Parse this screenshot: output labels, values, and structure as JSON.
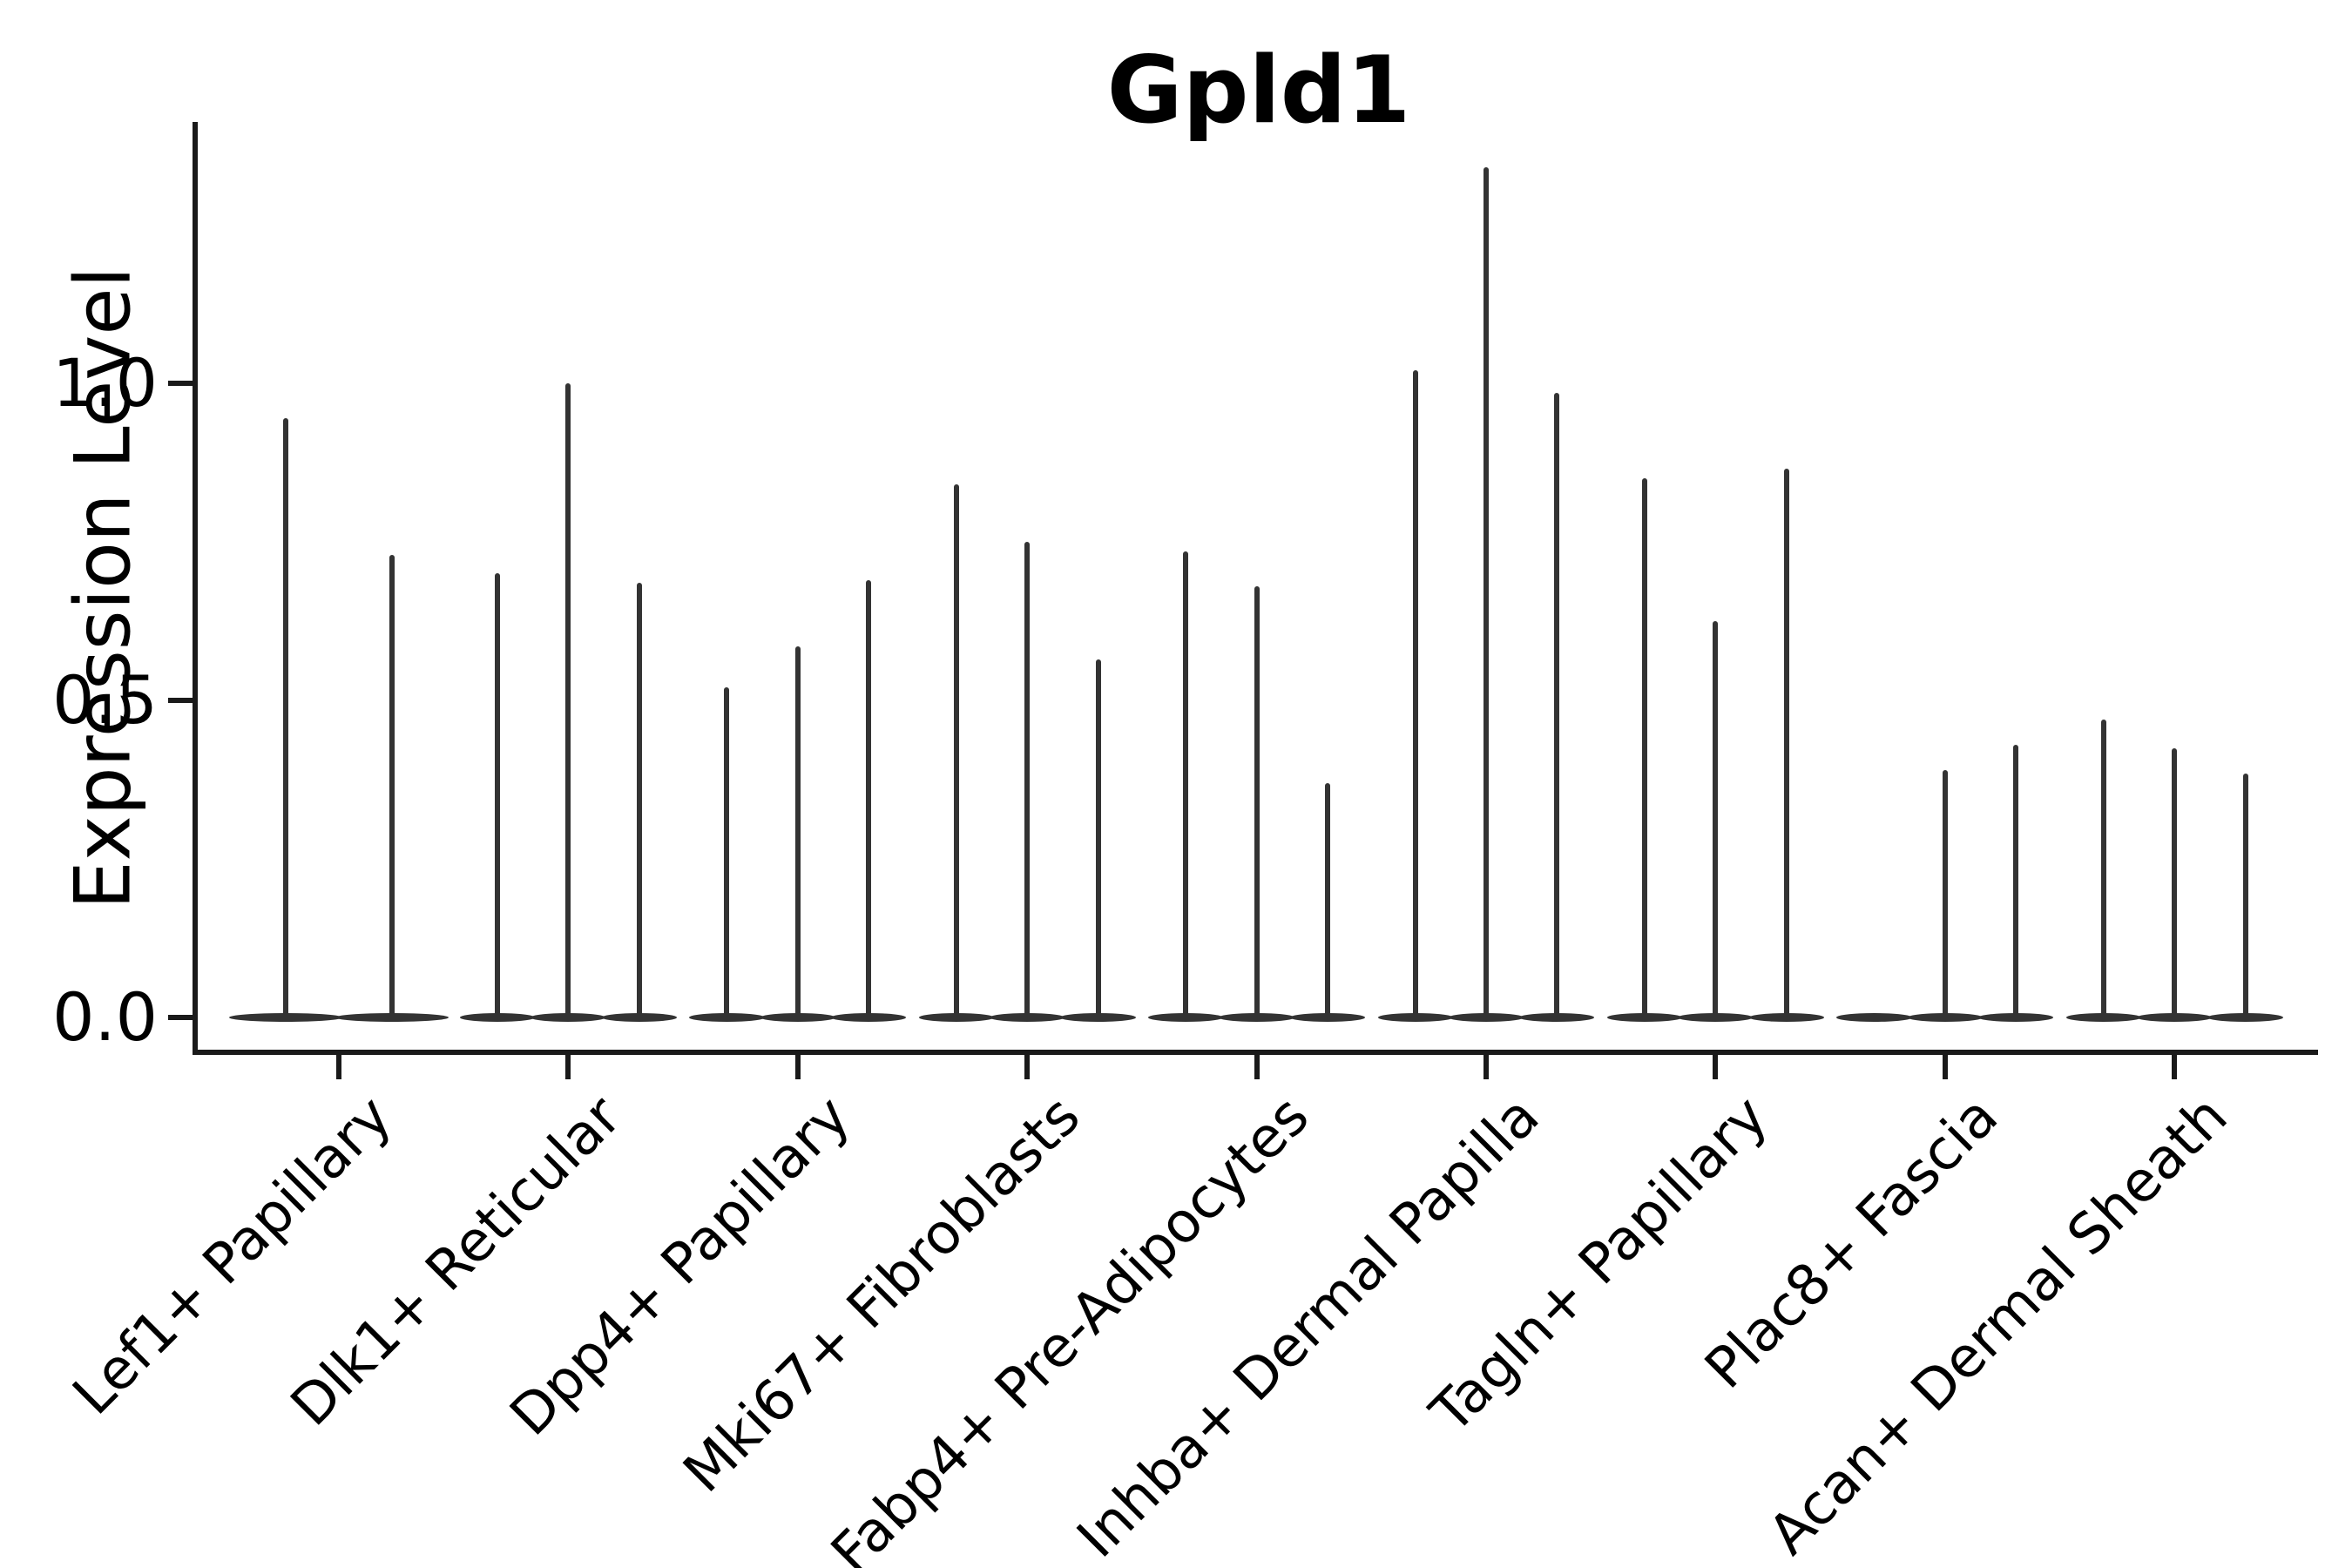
{
  "chart_data": {
    "type": "violin",
    "title": "Gpld1",
    "ylabel": "Expression Level",
    "xlabel": "",
    "grid": false,
    "legend_position": "none",
    "ylim": [
      -0.055,
      1.47
    ],
    "yticks": [
      {
        "label": "0.0",
        "value": 0.0
      },
      {
        "label": "0.5",
        "value": 0.5
      },
      {
        "label": "1.0",
        "value": 1.0
      }
    ],
    "categories": [
      "Lef1+ Papillary",
      "Dlk1+ Reticular",
      "Dpp4+ Papillary",
      "Mki67+ Fibroblasts",
      "Fabp4+ Pre-Adipocytes",
      "Inhba+ Dermal Papilla",
      "Tagln+ Papillary",
      "Plac8+ Fascia",
      "Acan+ Dermal Sheath"
    ],
    "series": [
      {
        "name": "Lef1+ Papillary",
        "violin_max_expression": [
          0.945,
          0.73
        ]
      },
      {
        "name": "Dlk1+ Reticular",
        "violin_max_expression": [
          0.7,
          1.0,
          0.685
        ]
      },
      {
        "name": "Dpp4+ Papillary",
        "violin_max_expression": [
          0.52,
          0.585,
          0.69
        ]
      },
      {
        "name": "Mki67+ Fibroblasts",
        "violin_max_expression": [
          0.84,
          0.75,
          0.565
        ]
      },
      {
        "name": "Fabp4+ Pre-Adipocytes",
        "violin_max_expression": [
          0.735,
          0.68,
          0.37
        ]
      },
      {
        "name": "Inhba+ Dermal Papilla",
        "violin_max_expression": [
          1.02,
          1.34,
          0.985
        ]
      },
      {
        "name": "Tagln+ Papillary",
        "violin_max_expression": [
          0.85,
          0.625,
          0.865
        ]
      },
      {
        "name": "Plac8+ Fascia",
        "violin_max_expression": [
          0.0,
          0.39,
          0.43
        ]
      },
      {
        "name": "Acan+ Dermal Sheath",
        "violin_max_expression": [
          0.47,
          0.425,
          0.385
        ]
      }
    ],
    "mark_description": "Each violin collapses to a flat density pancake at expression 0 with a thin vertical spike up to the max expression value",
    "colors": {
      "marks": "#333333",
      "axis": "#1a1a1a",
      "text": "#000000",
      "background": "#ffffff"
    }
  }
}
